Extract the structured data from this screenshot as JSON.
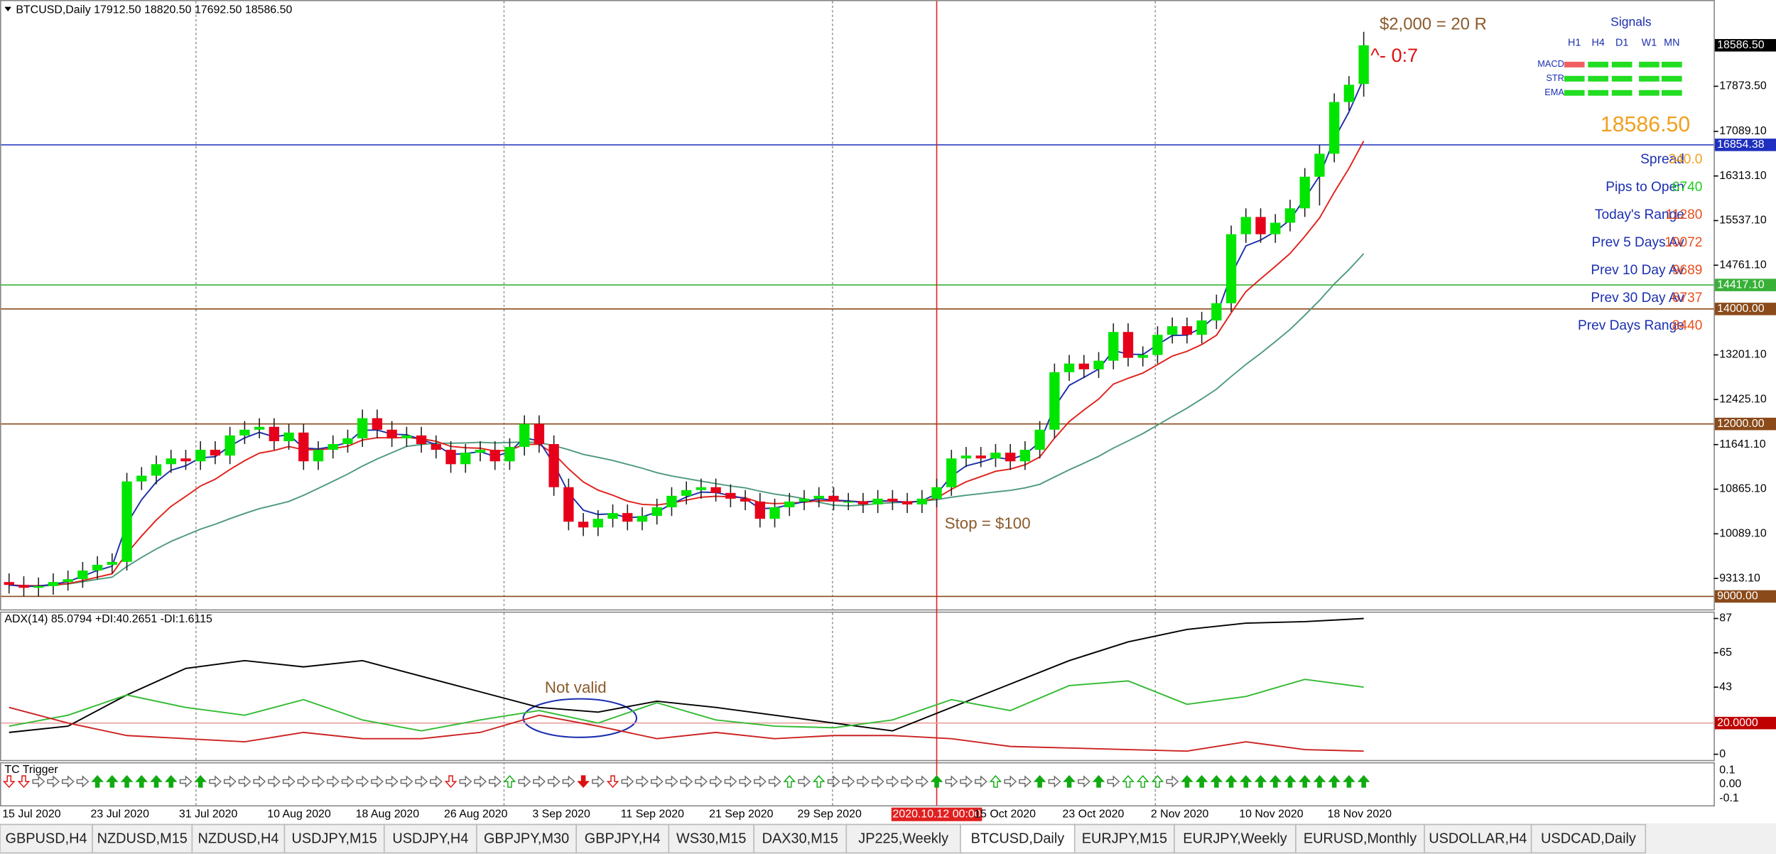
{
  "chart_data": {
    "type": "candlestick",
    "title": "BTCUSD,Daily  17912.50 18820.50 17692.50 18586.50",
    "categories": [
      "15 Jul 2020",
      null,
      null,
      null,
      null,
      null,
      "23 Jul 2020",
      null,
      null,
      null,
      null,
      null,
      "31 Jul 2020",
      null,
      null,
      null,
      null,
      null,
      "10 Aug 2020",
      null,
      null,
      null,
      null,
      null,
      "18 Aug 2020",
      null,
      null,
      null,
      null,
      null,
      "26 Aug 2020",
      null,
      null,
      null,
      null,
      null,
      "3 Sep 2020",
      null,
      null,
      null,
      null,
      null,
      "11 Sep 2020",
      null,
      null,
      null,
      null,
      null,
      "21 Sep 2020",
      null,
      null,
      null,
      null,
      null,
      "29 Sep 2020",
      null,
      null,
      null,
      null,
      null,
      null,
      null,
      null,
      "2020.10.12 00:00",
      null,
      null,
      "15 Oct 2020",
      null,
      null,
      null,
      null,
      null,
      "23 Oct 2020",
      null,
      null,
      null,
      null,
      null,
      "2 Nov 2020",
      null,
      null,
      null,
      null,
      null,
      "10 Nov 2020",
      null,
      null,
      null,
      null,
      null,
      "18 Nov 2020",
      null,
      null
    ],
    "crosshair_index": 63,
    "candles": [
      [
        9250,
        9400,
        9050,
        9200
      ],
      [
        9200,
        9350,
        9000,
        9150
      ],
      [
        9150,
        9330,
        9000,
        9180
      ],
      [
        9180,
        9400,
        9030,
        9250
      ],
      [
        9250,
        9450,
        9100,
        9300
      ],
      [
        9300,
        9600,
        9150,
        9450
      ],
      [
        9450,
        9700,
        9300,
        9550
      ],
      [
        9550,
        9750,
        9400,
        9600
      ],
      [
        9600,
        11150,
        9450,
        11000
      ],
      [
        11000,
        11250,
        10850,
        11100
      ],
      [
        11100,
        11450,
        10950,
        11300
      ],
      [
        11300,
        11550,
        11150,
        11400
      ],
      [
        11400,
        11550,
        11200,
        11350
      ],
      [
        11350,
        11700,
        11200,
        11550
      ],
      [
        11550,
        11700,
        11300,
        11450
      ],
      [
        11450,
        11950,
        11300,
        11800
      ],
      [
        11800,
        12050,
        11650,
        11900
      ],
      [
        11900,
        12100,
        11750,
        11950
      ],
      [
        11950,
        12100,
        11550,
        11700
      ],
      [
        11700,
        12000,
        11550,
        11850
      ],
      [
        11850,
        12000,
        11200,
        11350
      ],
      [
        11350,
        11700,
        11200,
        11550
      ],
      [
        11550,
        11800,
        11400,
        11650
      ],
      [
        11650,
        11900,
        11500,
        11750
      ],
      [
        11750,
        12250,
        11600,
        12100
      ],
      [
        12100,
        12250,
        11750,
        11900
      ],
      [
        11900,
        12050,
        11600,
        11750
      ],
      [
        11750,
        11950,
        11600,
        11800
      ],
      [
        11800,
        11950,
        11500,
        11650
      ],
      [
        11650,
        11800,
        11400,
        11550
      ],
      [
        11550,
        11700,
        11150,
        11300
      ],
      [
        11300,
        11650,
        11150,
        11500
      ],
      [
        11500,
        11700,
        11350,
        11550
      ],
      [
        11550,
        11700,
        11200,
        11350
      ],
      [
        11350,
        11750,
        11200,
        11600
      ],
      [
        11600,
        12150,
        11450,
        12000
      ],
      [
        12000,
        12150,
        11500,
        11650
      ],
      [
        11650,
        11800,
        10750,
        10900
      ],
      [
        10900,
        11050,
        10150,
        10300
      ],
      [
        10300,
        10450,
        10050,
        10200
      ],
      [
        10200,
        10500,
        10050,
        10350
      ],
      [
        10350,
        10600,
        10200,
        10450
      ],
      [
        10450,
        10600,
        10150,
        10300
      ],
      [
        10300,
        10550,
        10150,
        10400
      ],
      [
        10400,
        10700,
        10250,
        10550
      ],
      [
        10550,
        10900,
        10400,
        10750
      ],
      [
        10750,
        11000,
        10600,
        10850
      ],
      [
        10850,
        11050,
        10700,
        10900
      ],
      [
        10900,
        11050,
        10650,
        10800
      ],
      [
        10800,
        10950,
        10550,
        10700
      ],
      [
        10700,
        10850,
        10500,
        10650
      ],
      [
        10650,
        10800,
        10200,
        10350
      ],
      [
        10350,
        10700,
        10200,
        10550
      ],
      [
        10550,
        10800,
        10400,
        10650
      ],
      [
        10650,
        10850,
        10500,
        10700
      ],
      [
        10700,
        10900,
        10550,
        10750
      ],
      [
        10750,
        10900,
        10500,
        10650
      ],
      [
        10650,
        10800,
        10500,
        10650
      ],
      [
        10650,
        10800,
        10450,
        10600
      ],
      [
        10600,
        10850,
        10450,
        10700
      ],
      [
        10700,
        10850,
        10500,
        10650
      ],
      [
        10650,
        10800,
        10450,
        10600
      ],
      [
        10600,
        10850,
        10450,
        10700
      ],
      [
        10700,
        11050,
        10550,
        10900
      ],
      [
        10900,
        11550,
        10750,
        11400
      ],
      [
        11400,
        11600,
        11250,
        11450
      ],
      [
        11450,
        11600,
        11250,
        11400
      ],
      [
        11400,
        11650,
        11250,
        11500
      ],
      [
        11500,
        11650,
        11200,
        11350
      ],
      [
        11350,
        11700,
        11200,
        11550
      ],
      [
        11550,
        12050,
        11400,
        11900
      ],
      [
        11900,
        13050,
        11750,
        12900
      ],
      [
        12900,
        13200,
        12750,
        13050
      ],
      [
        13050,
        13200,
        12800,
        12950
      ],
      [
        12950,
        13250,
        12800,
        13100
      ],
      [
        13100,
        13750,
        12950,
        13600
      ],
      [
        13600,
        13750,
        13000,
        13150
      ],
      [
        13150,
        13350,
        13000,
        13200
      ],
      [
        13200,
        13700,
        13050,
        13550
      ],
      [
        13550,
        13850,
        13400,
        13700
      ],
      [
        13700,
        13850,
        13400,
        13550
      ],
      [
        13550,
        13950,
        13400,
        13800
      ],
      [
        13800,
        14250,
        13650,
        14100
      ],
      [
        14100,
        15450,
        13950,
        15300
      ],
      [
        15300,
        15750,
        15150,
        15600
      ],
      [
        15600,
        15750,
        15150,
        15300
      ],
      [
        15300,
        15650,
        15150,
        15500
      ],
      [
        15500,
        15900,
        15350,
        15750
      ],
      [
        15750,
        16450,
        15600,
        16300
      ],
      [
        16300,
        16850,
        15800,
        16700
      ],
      [
        16700,
        17750,
        16550,
        17600
      ],
      [
        17600,
        18050,
        17450,
        17900
      ],
      [
        17912.5,
        18820.5,
        17692.5,
        18586.5
      ]
    ],
    "colors": {
      "up": "#00e600",
      "down": "#e6001a",
      "wick": "#222222",
      "ema_fast": "#1c2fa8",
      "ema_slow": "#e0201a",
      "sma": "#4e9a7c"
    },
    "ylim": [
      8775,
      19374
    ],
    "yticks": [
      {
        "value": 17873.5,
        "label": "17873.50"
      },
      {
        "value": 17089.1,
        "label": "17089.10"
      },
      {
        "value": 16313.1,
        "label": "16313.10"
      },
      {
        "value": 15537.1,
        "label": "15537.10"
      },
      {
        "value": 14761.1,
        "label": "14761.10"
      },
      {
        "value": 13201.1,
        "label": "13201.10"
      },
      {
        "value": 12425.1,
        "label": "12425.10"
      },
      {
        "value": 11641.1,
        "label": "11641.10"
      },
      {
        "value": 10865.1,
        "label": "10865.10"
      },
      {
        "value": 10089.1,
        "label": "10089.10"
      },
      {
        "value": 9313.1,
        "label": "9313.10"
      }
    ],
    "levels": [
      {
        "value": 16854.38,
        "color": "#1f2fbf"
      },
      {
        "value": 14417.1,
        "label": "14417.10",
        "color": "#38b038"
      },
      {
        "value": 14000,
        "label": "14000.00",
        "color": "#8a4a1a"
      },
      {
        "value": 12000,
        "label": "12000.00",
        "color": "#8a4a1a"
      },
      {
        "value": 9000,
        "label": "9000.00",
        "color": "#8a4a1a"
      }
    ],
    "price_box": {
      "value": 18586.5,
      "label": "18586.50"
    },
    "r_note": "$2,000 = 20 R",
    "ratio_note": "^- 0:7",
    "price_big": "18586.50",
    "stop_note": "Stop = $100",
    "info_panel": [
      {
        "label": "Spread",
        "value": "340.0",
        "color": "#f0a020"
      },
      {
        "label": "Pips to Open",
        "value": "6740",
        "color": "#22cc22"
      },
      {
        "label": "Today's Range",
        "value": "11280",
        "color": "#e85020"
      },
      {
        "label": "Prev 5 Days Av",
        "value": "10072",
        "color": "#e85020"
      },
      {
        "label": "Prev 10 Day Av",
        "value": "9689",
        "color": "#e85020"
      },
      {
        "label": "Prev 30 Day Av",
        "value": "6737",
        "color": "#e85020"
      },
      {
        "label": "Prev Days Range",
        "value": "8440",
        "color": "#e85020"
      }
    ],
    "signals": {
      "title": "Signals",
      "columns": [
        "H1",
        "H4",
        "D1",
        "W1",
        "MN"
      ],
      "rows": [
        {
          "name": "MACD",
          "colors": [
            "#f06060",
            "#22dd22",
            "#22dd22",
            "#22dd22",
            "#22dd22"
          ]
        },
        {
          "name": "STR",
          "colors": [
            "#22dd22",
            "#22dd22",
            "#22dd22",
            "#22dd22",
            "#22dd22"
          ]
        },
        {
          "name": "EMA",
          "colors": [
            "#22dd22",
            "#22dd22",
            "#22dd22",
            "#22dd22",
            "#22dd22"
          ]
        }
      ]
    },
    "adx": {
      "title": "ADX(14) 85.0794 +DI:40.2651 -DI:1.6115",
      "ylim": [
        -4.4,
        91.4
      ],
      "yticks": [
        87,
        65,
        43,
        0
      ],
      "level": {
        "value": 20,
        "label": "20.0000",
        "color": "#c00000"
      },
      "not_valid": "Not valid",
      "lines": [
        {
          "color": "#000000",
          "values": [
            14,
            18,
            38,
            55,
            60,
            56,
            60,
            50,
            40,
            30,
            27,
            34,
            30,
            25,
            20,
            15,
            30,
            45,
            60,
            72,
            80,
            84,
            85,
            87
          ]
        },
        {
          "color": "#33bb33",
          "values": [
            18,
            25,
            38,
            30,
            25,
            35,
            22,
            15,
            22,
            28,
            20,
            33,
            22,
            18,
            17,
            22,
            35,
            28,
            44,
            47,
            32,
            37,
            48,
            43
          ]
        },
        {
          "color": "#cc2222",
          "values": [
            30,
            20,
            12,
            10,
            8,
            14,
            10,
            10,
            14,
            25,
            18,
            10,
            14,
            10,
            12,
            12,
            10,
            5,
            4,
            3,
            2,
            8,
            3,
            2
          ]
        }
      ]
    },
    "tc_trigger": {
      "title": "TC Trigger",
      "ylim": [
        -0.15,
        0.15
      ],
      "yticks": [
        0.1,
        {
          "value": 0,
          "label": "0.00"
        },
        -0.1
      ],
      "signals": [
        "D",
        "D",
        "r",
        "r",
        "r",
        "r",
        "u",
        "u",
        "u",
        "u",
        "u",
        "u",
        "r",
        "u",
        "r",
        "r",
        "r",
        "r",
        "r",
        "r",
        "r",
        "r",
        "r",
        "r",
        "r",
        "r",
        "r",
        "r",
        "r",
        "r",
        "D",
        "r",
        "r",
        "r",
        "U",
        "r",
        "r",
        "r",
        "r",
        "d",
        "r",
        "D",
        "r",
        "r",
        "r",
        "r",
        "r",
        "r",
        "r",
        "r",
        "r",
        "r",
        "r",
        "U",
        "r",
        "U",
        "r",
        "r",
        "r",
        "r",
        "r",
        "r",
        "r",
        "u",
        "r",
        "r",
        "r",
        "U",
        "r",
        "r",
        "u",
        "r",
        "u",
        "r",
        "u",
        "r",
        "U",
        "U",
        "U",
        "r",
        "u",
        "u",
        "u",
        "u",
        "u",
        "u",
        "u",
        "u",
        "u",
        "u",
        "u",
        "u",
        "u"
      ]
    }
  },
  "tabs": {
    "items": [
      "GBPUSD,H4",
      "NZDUSD,M15",
      "NZDUSD,H4",
      "USDJPY,M15",
      "USDJPY,H4",
      "GBPJPY,M30",
      "GBPJPY,H4",
      "WS30,M15",
      "DAX30,M15",
      "JP225,Weekly",
      "BTCUSD,Daily",
      "EURJPY,M15",
      "EURJPY,Weekly",
      "EURUSD,Monthly",
      "USDOLLAR,H4",
      "USDCAD,Daily"
    ],
    "active": 10
  }
}
